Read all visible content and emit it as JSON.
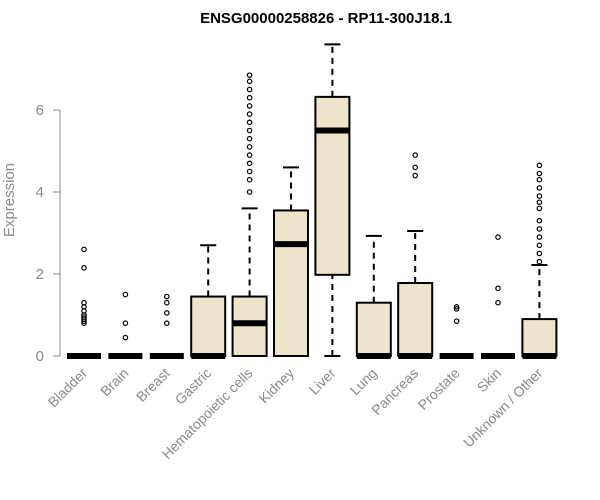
{
  "chart_data": {
    "type": "boxplot",
    "title": "ENSG00000258826 - RP11-300J18.1",
    "ylabel": "Expression",
    "xlabel": "",
    "ylim": [
      0,
      7.6
    ],
    "yticks": [
      0,
      2,
      4,
      6
    ],
    "box_fill": "#ede5cb",
    "categories": [
      "Bladder",
      "Brain",
      "Breast",
      "Gastric",
      "Hematopoietic cells",
      "Kidney",
      "Liver",
      "Lung",
      "Pancreas",
      "Prostate",
      "Skin",
      "Unknown / Other"
    ],
    "boxes": [
      {
        "q1": 0,
        "median": 0,
        "q3": 0,
        "whisker_low": 0,
        "whisker_high": 0,
        "outliers": [
          0.8,
          0.85,
          0.9,
          0.95,
          1.0,
          1.1,
          1.2,
          1.3,
          2.15,
          2.6
        ]
      },
      {
        "q1": 0,
        "median": 0,
        "q3": 0,
        "whisker_low": 0,
        "whisker_high": 0,
        "outliers": [
          0.45,
          0.8,
          1.5
        ]
      },
      {
        "q1": 0,
        "median": 0,
        "q3": 0,
        "whisker_low": 0,
        "whisker_high": 0,
        "outliers": [
          0.8,
          1.05,
          1.3,
          1.45
        ]
      },
      {
        "q1": 0,
        "median": 0,
        "q3": 1.45,
        "whisker_low": 0,
        "whisker_high": 2.7,
        "outliers": []
      },
      {
        "q1": 0,
        "median": 0.8,
        "q3": 1.45,
        "whisker_low": 0,
        "whisker_high": 3.6,
        "outliers": [
          4.0,
          4.3,
          4.5,
          4.7,
          4.9,
          5.1,
          5.3,
          5.5,
          5.7,
          5.9,
          6.1,
          6.3,
          6.5,
          6.7,
          6.85
        ]
      },
      {
        "q1": 0,
        "median": 2.73,
        "q3": 3.55,
        "whisker_low": 0,
        "whisker_high": 4.6,
        "outliers": []
      },
      {
        "q1": 1.98,
        "median": 5.5,
        "q3": 6.32,
        "whisker_low": 0,
        "whisker_high": 7.6,
        "outliers": []
      },
      {
        "q1": 0,
        "median": 0,
        "q3": 1.3,
        "whisker_low": 0,
        "whisker_high": 2.93,
        "outliers": []
      },
      {
        "q1": 0,
        "median": 0,
        "q3": 1.78,
        "whisker_low": 0,
        "whisker_high": 3.05,
        "outliers": [
          4.4,
          4.6,
          4.9
        ]
      },
      {
        "q1": 0,
        "median": 0,
        "q3": 0,
        "whisker_low": 0,
        "whisker_high": 0,
        "outliers": [
          0.85,
          1.15,
          1.2
        ]
      },
      {
        "q1": 0,
        "median": 0,
        "q3": 0,
        "whisker_low": 0,
        "whisker_high": 0,
        "outliers": [
          1.3,
          1.65,
          2.9
        ]
      },
      {
        "q1": 0,
        "median": 0,
        "q3": 0.9,
        "whisker_low": 0,
        "whisker_high": 2.22,
        "outliers": [
          2.3,
          2.5,
          2.7,
          2.9,
          3.1,
          3.3,
          3.6,
          3.75,
          3.9,
          4.1,
          4.3,
          4.45,
          4.65
        ]
      }
    ]
  }
}
